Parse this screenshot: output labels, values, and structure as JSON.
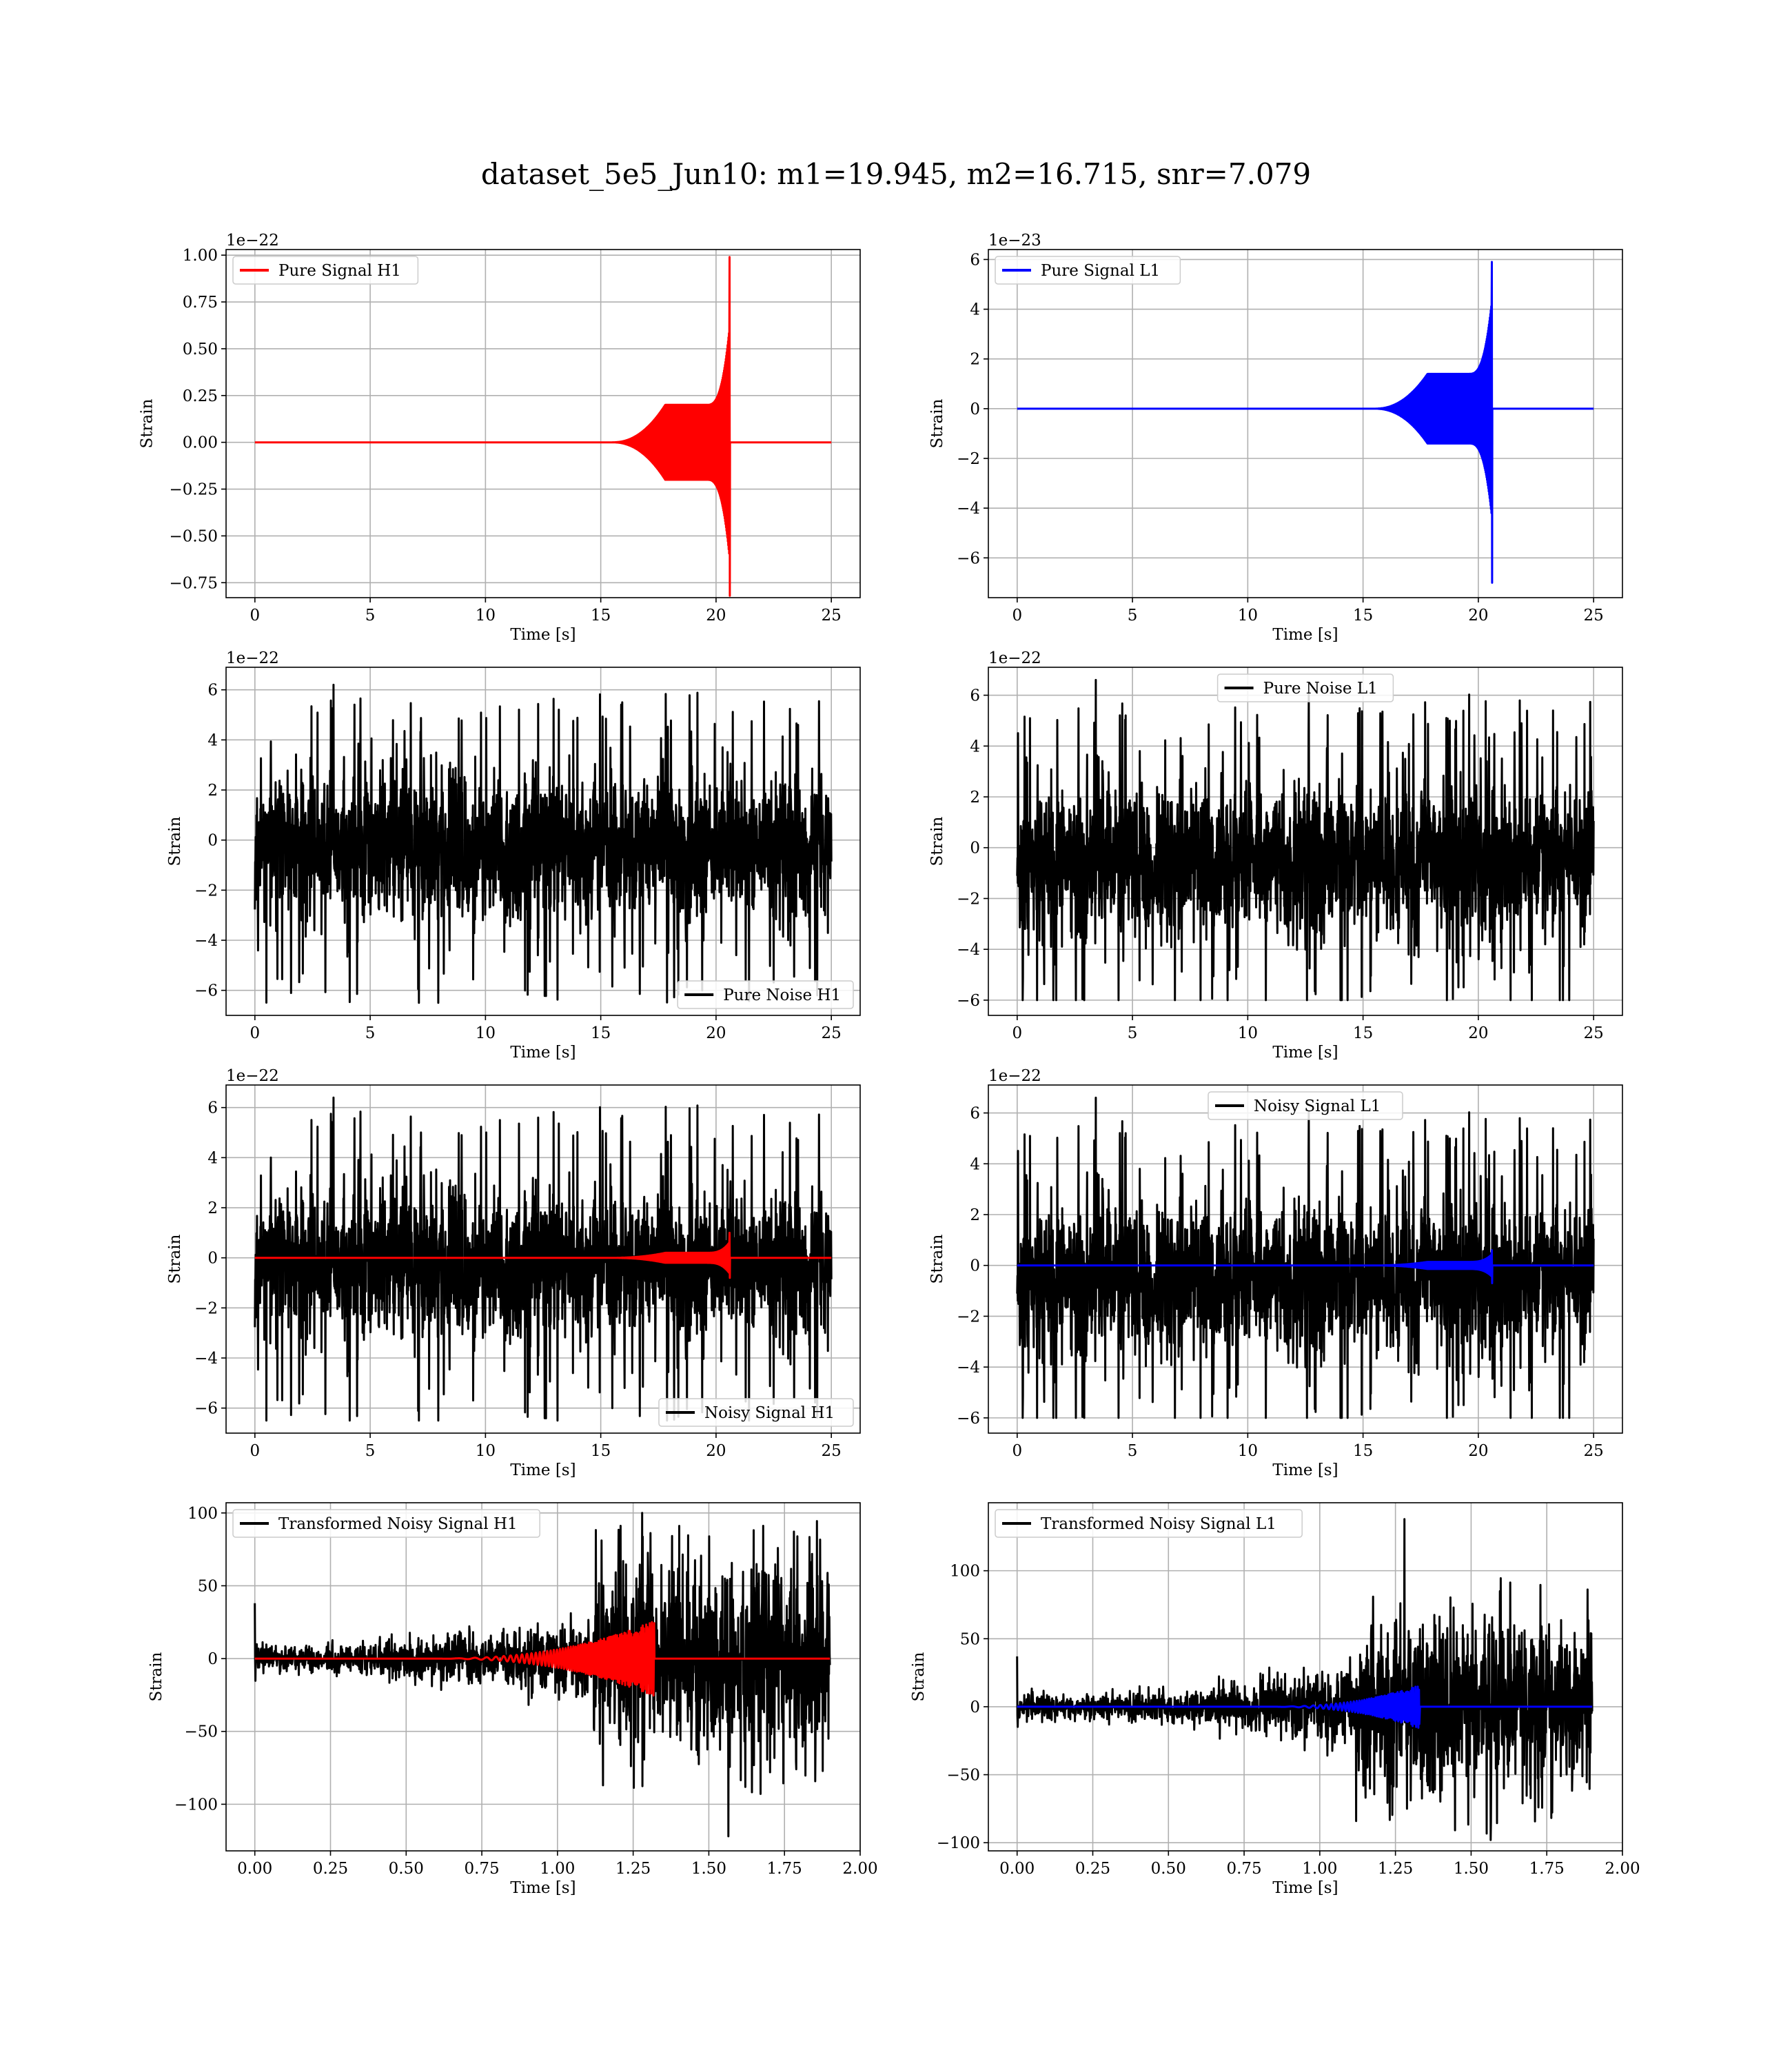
{
  "figure": {
    "title": "dataset_5e5_Jun10: m1=19.945, m2=16.715, snr=7.079"
  },
  "chart_data": [
    {
      "id": "pure-signal-h1",
      "type": "line",
      "title": "",
      "xlabel": "Time [s]",
      "ylabel": "Strain",
      "xlim": [
        -1.25,
        26.25
      ],
      "ylim": [
        -0.83,
        1.03
      ],
      "offset_text": "1e−22",
      "xticks": [
        0,
        5,
        10,
        15,
        20,
        25
      ],
      "xtick_labels": [
        "0",
        "5",
        "10",
        "15",
        "20",
        "25"
      ],
      "yticks": [
        -0.75,
        -0.5,
        -0.25,
        0.0,
        0.25,
        0.5,
        0.75,
        1.0
      ],
      "ytick_labels": [
        "−0.75",
        "−0.50",
        "−0.25",
        "0.00",
        "0.25",
        "0.50",
        "0.75",
        "1.00"
      ],
      "grid": true,
      "legend": {
        "position": "upper left"
      },
      "series": [
        {
          "name": "Pure Signal H1",
          "color": "#ff0000",
          "kind": "chirp",
          "duration": 25,
          "merger": 20.6,
          "plateau": 0.2,
          "peak_pos": 0.99,
          "peak_neg": -0.82,
          "legend": true
        }
      ]
    },
    {
      "id": "pure-signal-l1",
      "type": "line",
      "title": "",
      "xlabel": "Time [s]",
      "ylabel": "Strain",
      "xlim": [
        -1.25,
        26.25
      ],
      "ylim": [
        -7.6,
        6.4
      ],
      "offset_text": "1e−23",
      "xticks": [
        0,
        5,
        10,
        15,
        20,
        25
      ],
      "xtick_labels": [
        "0",
        "5",
        "10",
        "15",
        "20",
        "25"
      ],
      "yticks": [
        -6,
        -4,
        -2,
        0,
        2,
        4,
        6
      ],
      "ytick_labels": [
        "−6",
        "−4",
        "−2",
        "0",
        "2",
        "4",
        "6"
      ],
      "grid": true,
      "legend": {
        "position": "upper left"
      },
      "series": [
        {
          "name": "Pure Signal L1",
          "color": "#0000ff",
          "kind": "chirp",
          "duration": 25,
          "merger": 20.6,
          "plateau": 1.4,
          "peak_pos": 5.9,
          "peak_neg": -7.0,
          "legend": true
        }
      ]
    },
    {
      "id": "pure-noise-h1",
      "type": "line",
      "title": "",
      "xlabel": "Time [s]",
      "ylabel": "Strain",
      "xlim": [
        -1.25,
        26.25
      ],
      "ylim": [
        -7.0,
        6.9
      ],
      "offset_text": "1e−22",
      "xticks": [
        0,
        5,
        10,
        15,
        20,
        25
      ],
      "xtick_labels": [
        "0",
        "5",
        "10",
        "15",
        "20",
        "25"
      ],
      "yticks": [
        -6,
        -4,
        -2,
        0,
        2,
        4,
        6
      ],
      "ytick_labels": [
        "−6",
        "−4",
        "−2",
        "0",
        "2",
        "4",
        "6"
      ],
      "grid": true,
      "legend": {
        "position": "lower right"
      },
      "series": [
        {
          "name": "Pure Noise H1",
          "color": "#000000",
          "kind": "noise",
          "duration": 25,
          "center": -0.3,
          "spread": 1.5,
          "max": 6.2,
          "min": -6.5,
          "seed": 11,
          "legend": true
        }
      ]
    },
    {
      "id": "pure-noise-l1",
      "type": "line",
      "title": "",
      "xlabel": "Time [s]",
      "ylabel": "Strain",
      "xlim": [
        -1.25,
        26.25
      ],
      "ylim": [
        -6.6,
        7.1
      ],
      "offset_text": "1e−22",
      "xticks": [
        0,
        5,
        10,
        15,
        20,
        25
      ],
      "xtick_labels": [
        "0",
        "5",
        "10",
        "15",
        "20",
        "25"
      ],
      "yticks": [
        -6,
        -4,
        -2,
        0,
        2,
        4,
        6
      ],
      "ytick_labels": [
        "−6",
        "−4",
        "−2",
        "0",
        "2",
        "4",
        "6"
      ],
      "grid": true,
      "legend": {
        "position": "upper center"
      },
      "series": [
        {
          "name": "Pure Noise L1",
          "color": "#000000",
          "kind": "noise",
          "duration": 25,
          "center": -0.4,
          "spread": 1.5,
          "max": 6.6,
          "min": -6.0,
          "seed": 23,
          "legend": true
        }
      ]
    },
    {
      "id": "noisy-signal-h1",
      "type": "line",
      "title": "",
      "xlabel": "Time [s]",
      "ylabel": "Strain",
      "xlim": [
        -1.25,
        26.25
      ],
      "ylim": [
        -7.0,
        6.9
      ],
      "offset_text": "1e−22",
      "xticks": [
        0,
        5,
        10,
        15,
        20,
        25
      ],
      "xtick_labels": [
        "0",
        "5",
        "10",
        "15",
        "20",
        "25"
      ],
      "yticks": [
        -6,
        -4,
        -2,
        0,
        2,
        4,
        6
      ],
      "ytick_labels": [
        "−6",
        "−4",
        "−2",
        "0",
        "2",
        "4",
        "6"
      ],
      "grid": true,
      "legend": {
        "position": "lower right"
      },
      "series": [
        {
          "name": "Noisy Signal H1",
          "color": "#000000",
          "kind": "noise",
          "duration": 25,
          "center": -0.3,
          "spread": 1.5,
          "max": 6.4,
          "min": -6.5,
          "seed": 11,
          "legend": true
        },
        {
          "name": "",
          "color": "#ff0000",
          "kind": "chirp",
          "duration": 25,
          "merger": 20.6,
          "plateau": 0.2,
          "peak_pos": 1.0,
          "peak_neg": -0.8,
          "legend": false
        }
      ]
    },
    {
      "id": "noisy-signal-l1",
      "type": "line",
      "title": "",
      "xlabel": "Time [s]",
      "ylabel": "Strain",
      "xlim": [
        -1.25,
        26.25
      ],
      "ylim": [
        -6.6,
        7.1
      ],
      "offset_text": "1e−22",
      "xticks": [
        0,
        5,
        10,
        15,
        20,
        25
      ],
      "xtick_labels": [
        "0",
        "5",
        "10",
        "15",
        "20",
        "25"
      ],
      "yticks": [
        -6,
        -4,
        -2,
        0,
        2,
        4,
        6
      ],
      "ytick_labels": [
        "−6",
        "−4",
        "−2",
        "0",
        "2",
        "4",
        "6"
      ],
      "grid": true,
      "legend": {
        "position": "upper center"
      },
      "series": [
        {
          "name": "Noisy Signal L1",
          "color": "#000000",
          "kind": "noise",
          "duration": 25,
          "center": -0.4,
          "spread": 1.5,
          "max": 6.6,
          "min": -6.0,
          "seed": 23,
          "legend": true
        },
        {
          "name": "",
          "color": "#0000ff",
          "kind": "chirp",
          "duration": 25,
          "merger": 20.6,
          "plateau": 0.14,
          "peak_pos": 0.6,
          "peak_neg": -0.7,
          "legend": false
        }
      ]
    },
    {
      "id": "transformed-noisy-signal-h1",
      "type": "line",
      "title": "",
      "xlabel": "Time [s]",
      "ylabel": "Strain",
      "xlim": [
        -0.095,
        2.0
      ],
      "ylim": [
        -132,
        107
      ],
      "offset_text": "",
      "xticks": [
        0.0,
        0.25,
        0.5,
        0.75,
        1.0,
        1.25,
        1.5,
        1.75,
        2.0
      ],
      "xtick_labels": [
        "0.00",
        "0.25",
        "0.50",
        "0.75",
        "1.00",
        "1.25",
        "1.50",
        "1.75",
        "2.00"
      ],
      "yticks": [
        -100,
        -50,
        0,
        50,
        100
      ],
      "ytick_labels": [
        "−100",
        "−50",
        "0",
        "50",
        "100"
      ],
      "grid": true,
      "legend": {
        "position": "upper left"
      },
      "series": [
        {
          "name": "Transformed Noisy Signal H1",
          "color": "#000000",
          "kind": "tnoise",
          "duration": 1.9,
          "break": 1.12,
          "seed": 37,
          "max": 100,
          "min": -122,
          "spike0": 38,
          "legend": true
        },
        {
          "name": "",
          "color": "#ff0000",
          "kind": "tchirp",
          "duration": 1.9,
          "start": 0.55,
          "merger": 1.32,
          "peak": 26,
          "legend": false
        }
      ]
    },
    {
      "id": "transformed-noisy-signal-l1",
      "type": "line",
      "title": "",
      "xlabel": "Time [s]",
      "ylabel": "Strain",
      "xlim": [
        -0.095,
        2.0
      ],
      "ylim": [
        -106,
        150
      ],
      "offset_text": "",
      "xticks": [
        0.0,
        0.25,
        0.5,
        0.75,
        1.0,
        1.25,
        1.5,
        1.75,
        2.0
      ],
      "xtick_labels": [
        "0.00",
        "0.25",
        "0.50",
        "0.75",
        "1.00",
        "1.25",
        "1.50",
        "1.75",
        "2.00"
      ],
      "yticks": [
        -100,
        -50,
        0,
        50,
        100
      ],
      "ytick_labels": [
        "−100",
        "−50",
        "0",
        "50",
        "100"
      ],
      "grid": true,
      "legend": {
        "position": "upper left"
      },
      "series": [
        {
          "name": "Transformed Noisy Signal L1",
          "color": "#000000",
          "kind": "tnoise",
          "duration": 1.9,
          "break": 1.12,
          "seed": 53,
          "max": 138,
          "min": -98,
          "spike0": 37,
          "legend": true
        },
        {
          "name": "",
          "color": "#0000ff",
          "kind": "tchirp",
          "duration": 1.9,
          "start": 0.8,
          "merger": 1.33,
          "peak": 16,
          "legend": false
        }
      ]
    }
  ]
}
